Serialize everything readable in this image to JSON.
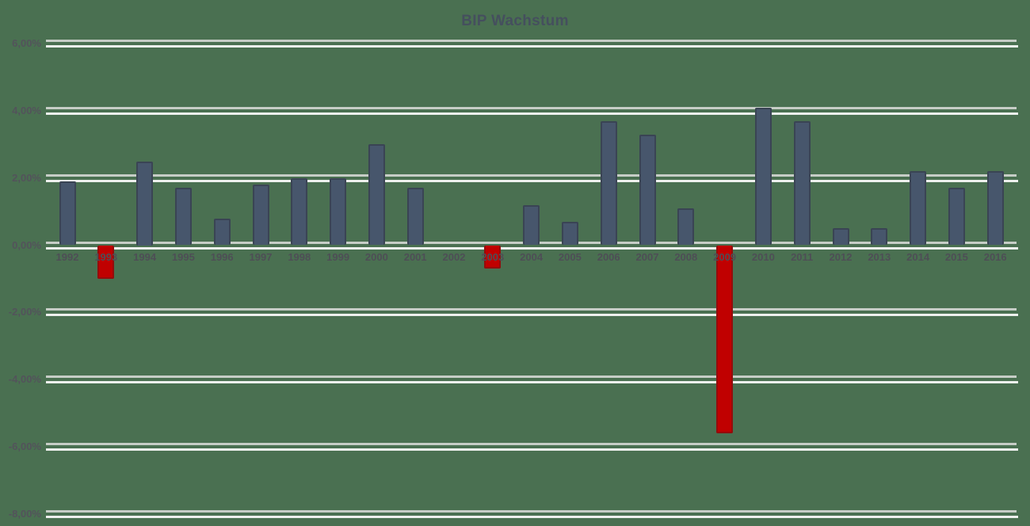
{
  "header": {
    "title": "BIP Wachstum"
  },
  "colors": {
    "background": "#4a7051",
    "bar_positive": "#47566c",
    "bar_positive_border": "#3a4454",
    "bar_negative": "#c00000",
    "bar_negative_border": "#940c0c",
    "gridline_top": "#c6cdc6",
    "gridline_bottom": "#edf0ed",
    "axis_label": "#53535b",
    "title": "#454f5e"
  },
  "chart_data": {
    "type": "bar",
    "title": "BIP Wachstum",
    "xlabel": "",
    "ylabel": "",
    "ylim": [
      -8,
      6
    ],
    "grid": "horizontal-major",
    "legend": "none",
    "categories": [
      1992,
      1993,
      1994,
      1995,
      1996,
      1997,
      1998,
      1999,
      2000,
      2001,
      2002,
      2003,
      2004,
      2005,
      2006,
      2007,
      2008,
      2009,
      2010,
      2011,
      2012,
      2013,
      2014,
      2015,
      2016
    ],
    "values": [
      1.9,
      -1.0,
      2.5,
      1.7,
      0.8,
      1.8,
      2.0,
      2.0,
      3.0,
      1.7,
      0.0,
      -0.7,
      1.2,
      0.7,
      3.7,
      3.3,
      1.1,
      -5.6,
      4.1,
      3.7,
      0.5,
      0.5,
      2.2,
      1.7,
      2.2
    ],
    "value_unit": "%",
    "color_rule": "positive values slate blue, negative values red",
    "y_ticks": [
      {
        "value": 6,
        "label": "6,00%"
      },
      {
        "value": 4,
        "label": "4,00%"
      },
      {
        "value": 2,
        "label": "2,00%"
      },
      {
        "value": 0,
        "label": "0,00%"
      },
      {
        "value": -2,
        "label": "-2,00%"
      },
      {
        "value": -4,
        "label": "-4,00%"
      },
      {
        "value": -6,
        "label": "-6,00%"
      },
      {
        "value": -8,
        "label": "-8,00%"
      }
    ]
  }
}
